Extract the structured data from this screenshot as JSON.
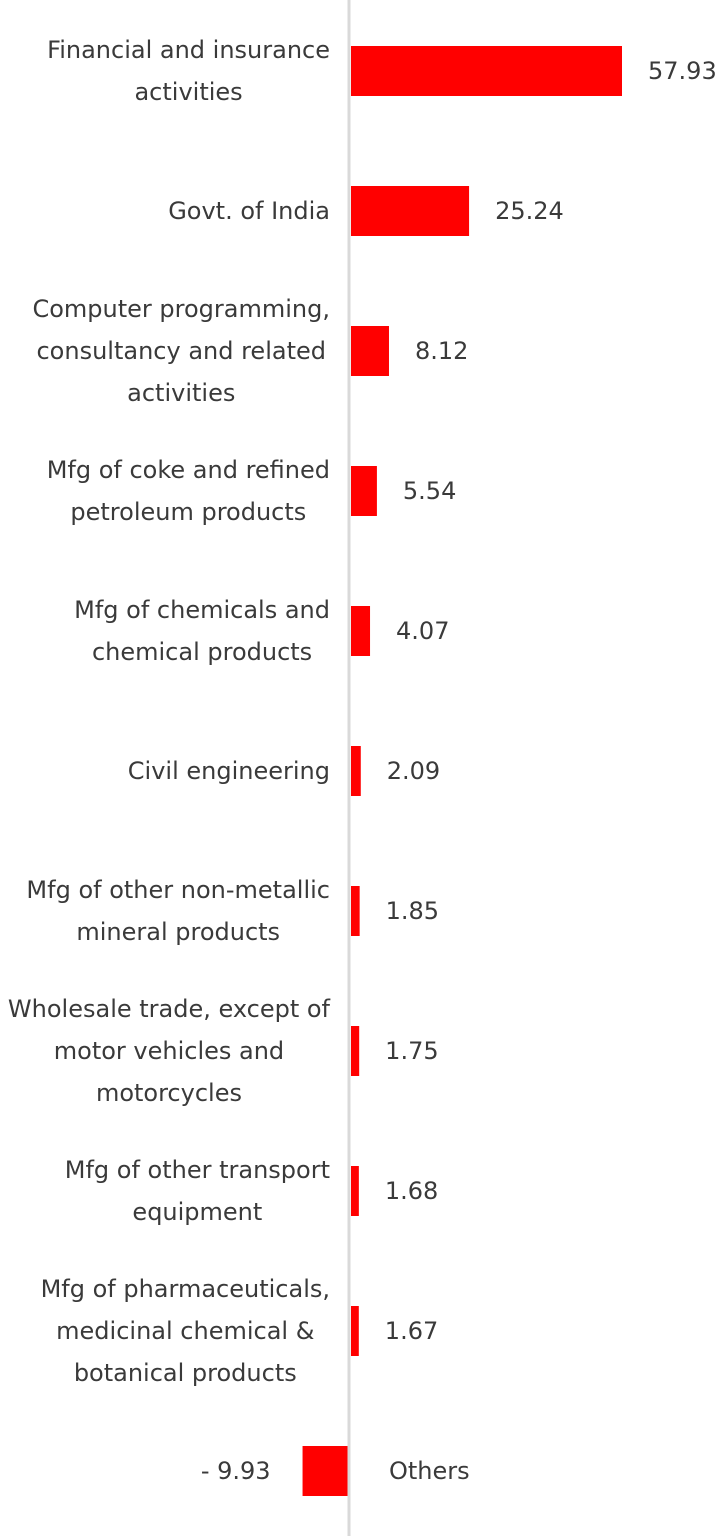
{
  "chart_data": {
    "type": "bar",
    "orientation": "horizontal",
    "categories": [
      "Financial and insurance activities",
      "Govt. of India",
      "Computer programming, consultancy and related activities",
      "Mfg of coke and refined petroleum products",
      "Mfg of chemicals and chemical products",
      "Civil engineering",
      "Mfg of other non-metallic mineral products",
      "Wholesale trade, except of motor vehicles and motorcycles",
      "Mfg of other transport equipment",
      "Mfg of pharmaceuticals, medicinal chemical & botanical products",
      "Others"
    ],
    "label_lines": [
      [
        "Financial and insurance",
        "activities"
      ],
      [
        "Govt. of India"
      ],
      [
        "Computer programming,",
        "consultancy and related",
        "activities"
      ],
      [
        "Mfg of coke and refined",
        "petroleum products"
      ],
      [
        "Mfg of chemicals and",
        "chemical products"
      ],
      [
        "Civil engineering"
      ],
      [
        "Mfg of other non-metallic",
        "mineral products"
      ],
      [
        "Wholesale trade, except of",
        "motor vehicles and",
        "motorcycles"
      ],
      [
        "Mfg of other transport",
        "equipment"
      ],
      [
        "Mfg of pharmaceuticals,",
        "medicinal chemical &",
        "botanical products"
      ],
      [
        "Others"
      ]
    ],
    "values": [
      57.93,
      25.24,
      8.12,
      5.54,
      4.07,
      2.09,
      1.85,
      1.75,
      1.68,
      1.67,
      -9.93
    ],
    "value_labels": [
      "57.93",
      "25.24",
      "8.12",
      "5.54",
      "4.07",
      "2.09",
      "1.85",
      "1.75",
      "1.68",
      "1.67",
      "-  9.93"
    ],
    "bar_color": "#ff0000",
    "axis_color": "#d9d9d9",
    "text_color": "#3a3a3a",
    "title": "",
    "xlabel": "",
    "ylabel": "",
    "grid": false,
    "legend": "none"
  }
}
